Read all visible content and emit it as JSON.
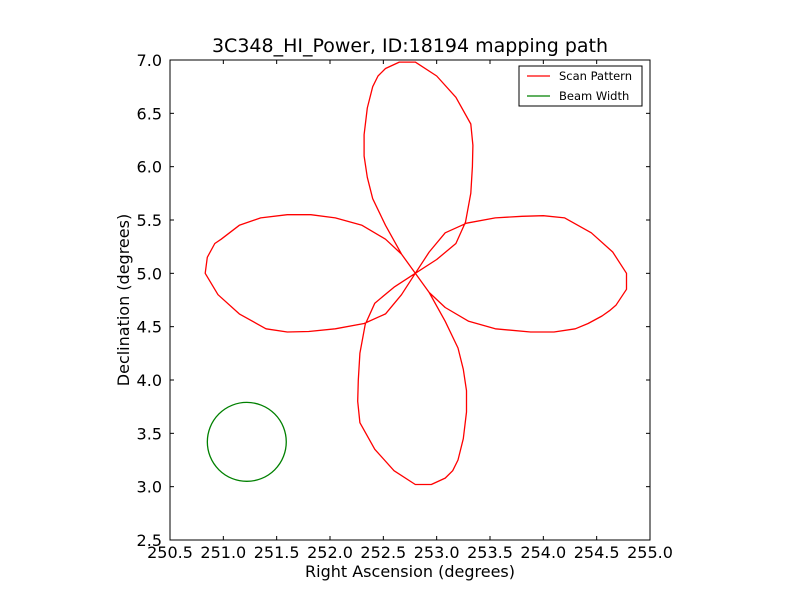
{
  "chart_data": {
    "type": "line",
    "title": "3C348_HI_Power, ID:18194 mapping path",
    "xlabel": "Right Ascension (degrees)",
    "ylabel": "Declination (degrees)",
    "xlim": [
      250.5,
      255.0
    ],
    "ylim": [
      2.5,
      7.0
    ],
    "x_ticks": [
      "250.5",
      "251.0",
      "251.5",
      "252.0",
      "252.5",
      "253.0",
      "253.5",
      "254.0",
      "254.5",
      "255.0"
    ],
    "y_ticks": [
      "2.5",
      "3.0",
      "3.5",
      "4.0",
      "4.5",
      "5.0",
      "5.5",
      "6.0",
      "6.5",
      "7.0"
    ],
    "grid": false,
    "legend_position": "top-right",
    "center": [
      252.8,
      5.0
    ],
    "series": [
      {
        "name": "Scan Pattern",
        "color": "#ff0000",
        "shape": "four-petal rose",
        "petal_length_deg": 2.0,
        "points": [
          [
            252.8,
            5.0
          ],
          [
            252.93,
            5.2
          ],
          [
            253.08,
            5.38
          ],
          [
            253.28,
            5.47
          ],
          [
            253.55,
            5.52
          ],
          [
            253.8,
            5.535
          ],
          [
            254.0,
            5.54
          ],
          [
            254.2,
            5.52
          ],
          [
            254.45,
            5.38
          ],
          [
            254.65,
            5.2
          ],
          [
            254.78,
            5.0
          ],
          [
            254.78,
            4.85
          ],
          [
            254.68,
            4.7
          ],
          [
            254.62,
            4.65
          ],
          [
            254.55,
            4.6
          ],
          [
            254.42,
            4.53
          ],
          [
            254.3,
            4.48
          ],
          [
            254.1,
            4.45
          ],
          [
            253.88,
            4.45
          ],
          [
            253.55,
            4.48
          ],
          [
            253.3,
            4.55
          ],
          [
            253.08,
            4.68
          ],
          [
            252.93,
            4.82
          ],
          [
            252.8,
            5.0
          ],
          [
            252.67,
            4.8
          ],
          [
            252.52,
            4.62
          ],
          [
            252.32,
            4.53
          ],
          [
            252.05,
            4.48
          ],
          [
            251.8,
            4.455
          ],
          [
            251.6,
            4.45
          ],
          [
            251.4,
            4.48
          ],
          [
            251.15,
            4.62
          ],
          [
            250.95,
            4.8
          ],
          [
            250.83,
            5.0
          ],
          [
            250.85,
            5.15
          ],
          [
            250.92,
            5.28
          ],
          [
            250.98,
            5.32
          ],
          [
            251.15,
            5.45
          ],
          [
            251.35,
            5.52
          ],
          [
            251.6,
            5.55
          ],
          [
            251.82,
            5.55
          ],
          [
            252.05,
            5.52
          ],
          [
            252.3,
            5.45
          ],
          [
            252.52,
            5.32
          ],
          [
            252.67,
            5.18
          ],
          [
            252.8,
            5.0
          ],
          [
            252.6,
            4.87
          ],
          [
            252.42,
            4.72
          ],
          [
            252.33,
            4.52
          ],
          [
            252.28,
            4.25
          ],
          [
            252.265,
            4.0
          ],
          [
            252.26,
            3.8
          ],
          [
            252.28,
            3.6
          ],
          [
            252.42,
            3.35
          ],
          [
            252.6,
            3.15
          ],
          [
            252.8,
            3.02
          ],
          [
            252.95,
            3.02
          ],
          [
            253.08,
            3.08
          ],
          [
            253.15,
            3.15
          ],
          [
            253.2,
            3.25
          ],
          [
            253.25,
            3.45
          ],
          [
            253.28,
            3.7
          ],
          [
            253.28,
            3.9
          ],
          [
            253.25,
            4.1
          ],
          [
            253.2,
            4.3
          ],
          [
            253.08,
            4.55
          ],
          [
            252.93,
            4.82
          ],
          [
            252.8,
            5.0
          ],
          [
            253.0,
            5.13
          ],
          [
            253.18,
            5.28
          ],
          [
            253.27,
            5.48
          ],
          [
            253.32,
            5.75
          ],
          [
            253.335,
            6.0
          ],
          [
            253.34,
            6.2
          ],
          [
            253.32,
            6.4
          ],
          [
            253.18,
            6.65
          ],
          [
            253.0,
            6.85
          ],
          [
            252.8,
            6.98
          ],
          [
            252.65,
            6.98
          ],
          [
            252.52,
            6.92
          ],
          [
            252.45,
            6.85
          ],
          [
            252.4,
            6.75
          ],
          [
            252.35,
            6.55
          ],
          [
            252.32,
            6.3
          ],
          [
            252.32,
            6.1
          ],
          [
            252.35,
            5.9
          ],
          [
            252.4,
            5.7
          ],
          [
            252.52,
            5.45
          ],
          [
            252.67,
            5.18
          ],
          [
            252.8,
            5.0
          ]
        ]
      },
      {
        "name": "Beam Width",
        "color": "#008000",
        "shape": "circle",
        "center": [
          251.22,
          3.42
        ],
        "radius_deg": 0.37
      }
    ]
  }
}
